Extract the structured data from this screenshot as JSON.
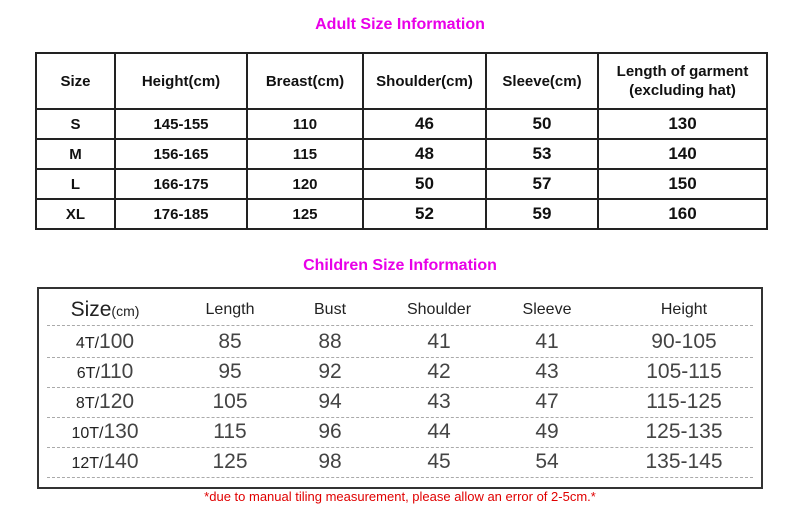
{
  "adult": {
    "title": "Adult Size Information",
    "headers": [
      "Size",
      "Height(cm)",
      "Breast(cm)",
      "Shoulder(cm)",
      "Sleeve(cm)",
      "Length of garment",
      "(excluding hat)"
    ],
    "rows": [
      [
        "S",
        "145-155",
        "110",
        "46",
        "50",
        "130"
      ],
      [
        "M",
        "156-165",
        "115",
        "48",
        "53",
        "140"
      ],
      [
        "L",
        "166-175",
        "120",
        "50",
        "57",
        "150"
      ],
      [
        "XL",
        "176-185",
        "125",
        "52",
        "59",
        "160"
      ]
    ]
  },
  "children": {
    "title": "Children Size Information",
    "headers": {
      "size": "Size",
      "size_unit": "(cm)",
      "cols": [
        "Length",
        "Bust",
        "Shoulder",
        "Sleeve",
        "Height"
      ]
    },
    "rows": [
      {
        "size": "4T/",
        "cm": "100",
        "vals": [
          "85",
          "88",
          "41",
          "41",
          "90-105"
        ]
      },
      {
        "size": "6T/",
        "cm": "110",
        "vals": [
          "95",
          "92",
          "42",
          "43",
          "105-115"
        ]
      },
      {
        "size": "8T/",
        "cm": "120",
        "vals": [
          "105",
          "94",
          "43",
          "47",
          "115-125"
        ]
      },
      {
        "size": "10T/",
        "cm": "130",
        "vals": [
          "115",
          "96",
          "44",
          "49",
          "125-135"
        ]
      },
      {
        "size": "12T/",
        "cm": "140",
        "vals": [
          "125",
          "98",
          "45",
          "54",
          "135-145"
        ]
      }
    ],
    "note": "*due to manual tiling measurement, please allow an error of 2-5cm.*"
  },
  "colors": {
    "title": "#e800e8",
    "note": "#e00000"
  }
}
